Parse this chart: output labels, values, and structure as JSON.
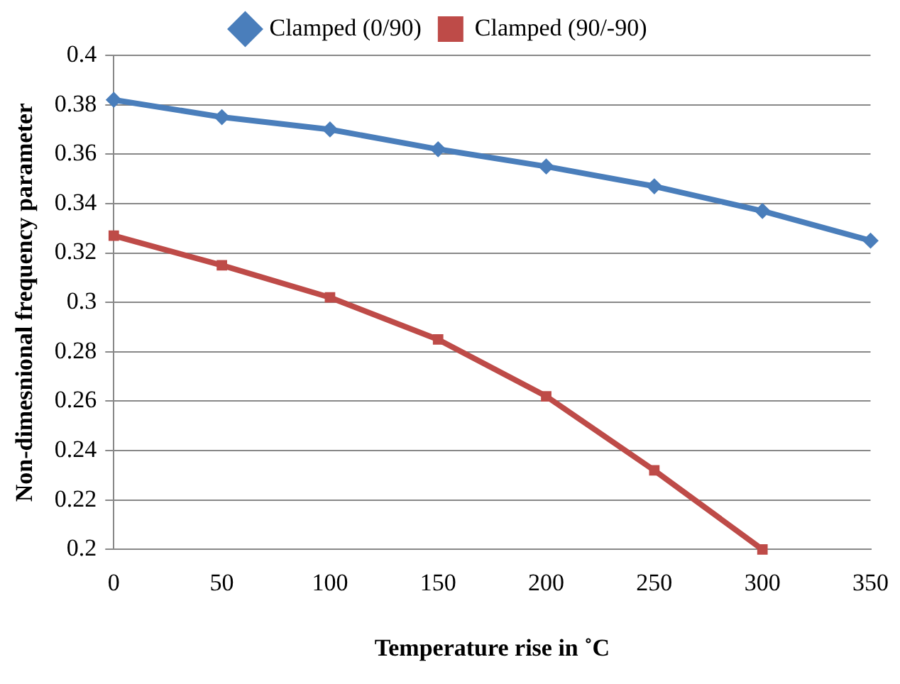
{
  "chart_data": {
    "type": "line",
    "xlabel": "Temperature rise in ˚C",
    "ylabel": "Non-dimesnional frequency parameter",
    "categories": [
      "0",
      "50",
      "100",
      "150",
      "200",
      "250",
      "300",
      "350"
    ],
    "series": [
      {
        "name": "Clamped (0/90)",
        "color": "#4a7ebb",
        "marker": "diamond",
        "values": [
          0.382,
          0.375,
          0.37,
          0.362,
          0.355,
          0.347,
          0.337,
          0.325
        ]
      },
      {
        "name": "Clamped (90/-90)",
        "color": "#be4b48",
        "marker": "square",
        "values": [
          0.327,
          0.315,
          0.302,
          0.285,
          0.262,
          0.232,
          0.2,
          null
        ]
      }
    ],
    "ylim": [
      0.2,
      0.4
    ],
    "yticks": [
      0.2,
      0.22,
      0.24,
      0.26,
      0.28,
      0.3,
      0.32,
      0.34,
      0.36,
      0.38,
      0.4
    ],
    "grid": "y",
    "legend": "top",
    "line_style": "solid"
  }
}
